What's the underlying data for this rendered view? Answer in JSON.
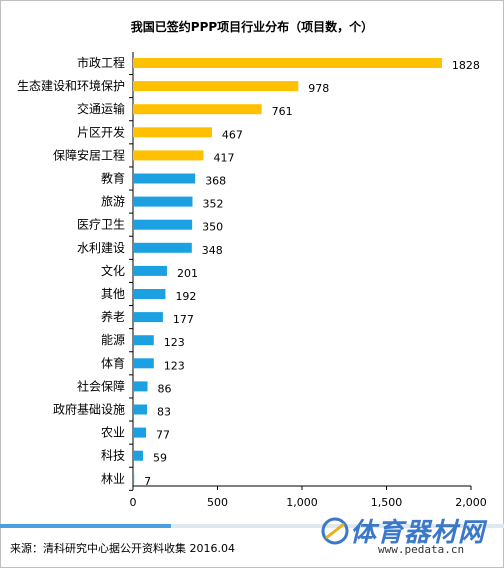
{
  "chart_data": {
    "type": "bar",
    "orientation": "horizontal",
    "title": "我国已签约PPP项目行业分布（项目数，个）",
    "categories": [
      "市政工程",
      "生态建设和环境保护",
      "交通运输",
      "片区开发",
      "保障安居工程",
      "教育",
      "旅游",
      "医疗卫生",
      "水利建设",
      "文化",
      "其他",
      "养老",
      "能源",
      "体育",
      "社会保障",
      "政府基础设施",
      "农业",
      "科技",
      "林业"
    ],
    "values": [
      1828,
      978,
      761,
      467,
      417,
      368,
      352,
      350,
      348,
      201,
      192,
      177,
      123,
      123,
      86,
      83,
      77,
      59,
      7
    ],
    "bar_colors": [
      "#FFC000",
      "#FFC000",
      "#FFC000",
      "#FFC000",
      "#FFC000",
      "#1BA1E2",
      "#1BA1E2",
      "#1BA1E2",
      "#1BA1E2",
      "#1BA1E2",
      "#1BA1E2",
      "#1BA1E2",
      "#1BA1E2",
      "#1BA1E2",
      "#1BA1E2",
      "#1BA1E2",
      "#1BA1E2",
      "#1BA1E2",
      "#1BA1E2"
    ],
    "xlim": [
      0,
      2000
    ],
    "x_ticks": [
      0,
      500,
      1000,
      1500,
      2000
    ],
    "x_tick_labels": [
      "0",
      "500",
      "1,000",
      "1,500",
      "2,000"
    ],
    "grid": false,
    "legend": "none"
  },
  "source": "来源：清科研究中心据公开资料收集 2016.04",
  "watermark": {
    "brand": "体育器材网",
    "url": "www.pedata.cn"
  },
  "progress_fraction": 0.34
}
